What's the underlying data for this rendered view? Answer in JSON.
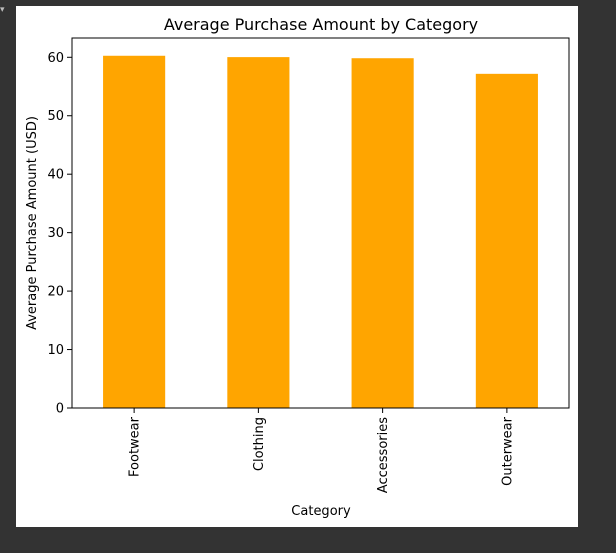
{
  "chart_data": {
    "type": "bar",
    "title": "Average Purchase Amount by Category",
    "xlabel": "Category",
    "ylabel": "Average Purchase Amount (USD)",
    "categories": [
      "Footwear",
      "Clothing",
      "Accessories",
      "Outerwear"
    ],
    "values": [
      60.26,
      60.03,
      59.84,
      57.17
    ],
    "ylim": [
      0,
      63.3
    ],
    "yticks": [
      0,
      10,
      20,
      30,
      40,
      50,
      60
    ],
    "bar_color": "#FFA500",
    "grid": false,
    "legend": "none"
  },
  "ui": {
    "corner_glyph": "▾",
    "background_color": "#333333",
    "canvas_color": "#FFFFFF"
  }
}
